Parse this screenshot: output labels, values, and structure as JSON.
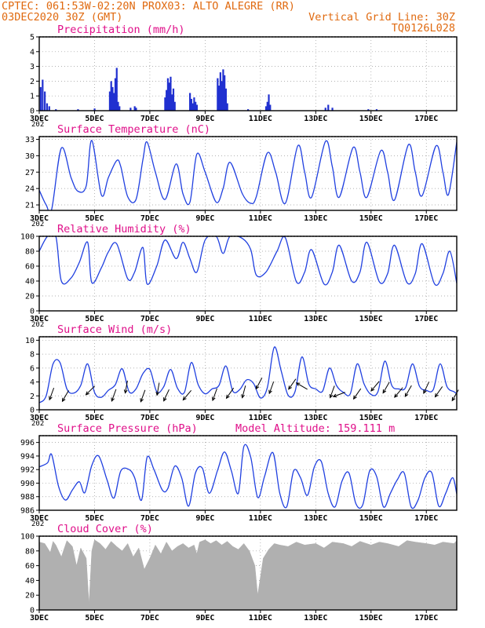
{
  "header": {
    "line1": "CPTEC:  061:53W-02:20N  PROX03: ALTO ALEGRE (RR)",
    "line2_left": "03DEC2020 30Z (GMT)",
    "line2_right": "Vertical Grid Line: 30Z",
    "line3_right": "TQ0126L028"
  },
  "x_axis": {
    "ticks": [
      "3DEC",
      "5DEC",
      "7DEC",
      "9DEC",
      "11DEC",
      "13DEC",
      "15DEC",
      "17DEC"
    ],
    "tick_days": [
      3,
      5,
      7,
      9,
      11,
      13,
      15,
      17
    ],
    "range_days": [
      3,
      18.1
    ],
    "cutoff_label": "202"
  },
  "colors": {
    "line": "#2040e0",
    "bars": "#2030d0",
    "cloud": "#b0b0b0",
    "arrows": "#000000",
    "header": "#e06a10",
    "titles": "#e0108a"
  },
  "chart_data": [
    {
      "type": "bar",
      "title": "Precipitation (mm/h)",
      "ylim": [
        0,
        5
      ],
      "yticks": [
        "0",
        "1",
        "2",
        "3",
        "4",
        "5"
      ],
      "grid": true,
      "x": [
        3.05,
        3.12,
        3.2,
        3.28,
        3.36,
        3.6,
        4.4,
        5.0,
        5.55,
        5.6,
        5.65,
        5.7,
        5.75,
        5.8,
        5.85,
        5.9,
        6.3,
        6.45,
        6.5,
        7.55,
        7.6,
        7.65,
        7.7,
        7.75,
        7.8,
        7.85,
        7.9,
        8.45,
        8.5,
        8.55,
        8.6,
        8.65,
        8.7,
        9.45,
        9.5,
        9.55,
        9.6,
        9.65,
        9.7,
        9.75,
        9.8,
        10.55,
        11.2,
        11.25,
        11.3,
        11.35,
        13.35,
        13.45,
        13.6,
        14.9,
        15.2
      ],
      "values": [
        1.6,
        2.1,
        1.3,
        0.5,
        0.3,
        0.1,
        0.1,
        0.15,
        1.3,
        2.0,
        1.6,
        1.2,
        2.2,
        2.9,
        0.6,
        0.3,
        0.2,
        0.3,
        0.2,
        0.9,
        1.4,
        2.2,
        1.9,
        2.3,
        1.1,
        1.5,
        0.6,
        1.2,
        0.8,
        0.5,
        0.9,
        0.6,
        0.4,
        2.2,
        1.7,
        2.6,
        2.0,
        2.8,
        2.4,
        1.5,
        0.5,
        0.1,
        0.3,
        0.6,
        1.1,
        0.4,
        0.2,
        0.4,
        0.2,
        0.1,
        0.1
      ]
    },
    {
      "type": "line",
      "title": "Surface Temperature (nC)",
      "ylim": [
        20,
        33.5
      ],
      "yticks": [
        "21",
        "24",
        "27",
        "30",
        "33"
      ],
      "grid": true,
      "x": [
        3.0,
        3.25,
        3.45,
        3.8,
        4.15,
        4.4,
        4.7,
        4.9,
        5.25,
        5.5,
        5.8,
        5.95,
        6.2,
        6.5,
        6.75,
        6.9,
        7.2,
        7.55,
        7.95,
        8.2,
        8.45,
        8.7,
        9.0,
        9.4,
        9.65,
        9.9,
        10.35,
        10.65,
        10.85,
        11.25,
        11.55,
        11.9,
        12.35,
        12.6,
        12.85,
        13.35,
        13.6,
        13.85,
        14.35,
        14.6,
        14.85,
        15.35,
        15.6,
        15.85,
        16.35,
        16.6,
        16.85,
        17.35,
        17.6,
        17.8,
        18.1
      ],
      "values": [
        23.7,
        21.0,
        20.2,
        31.4,
        26.0,
        23.5,
        24.5,
        32.8,
        22.8,
        26.0,
        29.1,
        28.0,
        22.5,
        22.0,
        29.3,
        32.5,
        27.0,
        22.0,
        28.5,
        23.0,
        21.5,
        30.3,
        27.0,
        21.5,
        24.0,
        28.8,
        23.0,
        21.3,
        22.5,
        30.5,
        27.0,
        21.3,
        31.8,
        27.0,
        22.4,
        32.6,
        28.0,
        22.4,
        31.5,
        27.0,
        22.4,
        30.9,
        27.0,
        21.9,
        32.0,
        27.0,
        22.7,
        31.8,
        27.0,
        22.9,
        32.5
      ]
    },
    {
      "type": "line",
      "title": "Relative Humidity (%)",
      "ylim": [
        0,
        100
      ],
      "yticks": [
        "0",
        "20",
        "40",
        "60",
        "80",
        "100"
      ],
      "grid": true,
      "x": [
        3.0,
        3.3,
        3.6,
        3.8,
        4.15,
        4.45,
        4.75,
        4.9,
        5.25,
        5.5,
        5.8,
        6.2,
        6.45,
        6.75,
        6.9,
        7.25,
        7.55,
        7.95,
        8.2,
        8.45,
        8.7,
        9.0,
        9.4,
        9.65,
        9.9,
        10.35,
        10.65,
        10.85,
        11.2,
        11.6,
        11.9,
        12.3,
        12.6,
        12.85,
        13.3,
        13.6,
        13.85,
        14.3,
        14.6,
        14.85,
        15.3,
        15.6,
        15.85,
        16.3,
        16.6,
        16.85,
        17.3,
        17.6,
        17.85,
        18.1
      ],
      "values": [
        80,
        100,
        100,
        40,
        44,
        65,
        92,
        38,
        58,
        79,
        90,
        43,
        52,
        85,
        36,
        60,
        95,
        70,
        92,
        70,
        52,
        95,
        100,
        77,
        100,
        97,
        82,
        48,
        52,
        80,
        98,
        39,
        52,
        82,
        36,
        52,
        88,
        40,
        52,
        92,
        39,
        50,
        88,
        38,
        50,
        90,
        36,
        50,
        80,
        37
      ]
    },
    {
      "type": "line",
      "title": "Surface Wind (m/s)",
      "ylim": [
        0,
        10.5
      ],
      "yticks": [
        "0",
        "2",
        "4",
        "6",
        "8",
        "10"
      ],
      "grid": true,
      "x": [
        3.0,
        3.25,
        3.5,
        3.75,
        4.0,
        4.25,
        4.5,
        4.75,
        5.0,
        5.25,
        5.5,
        5.75,
        6.0,
        6.25,
        6.5,
        6.75,
        7.0,
        7.25,
        7.5,
        7.75,
        8.0,
        8.25,
        8.5,
        8.75,
        9.0,
        9.25,
        9.5,
        9.75,
        10.0,
        10.25,
        10.5,
        10.75,
        11.0,
        11.25,
        11.5,
        11.75,
        12.0,
        12.25,
        12.5,
        12.75,
        13.0,
        13.25,
        13.5,
        13.75,
        14.0,
        14.25,
        14.5,
        14.75,
        15.0,
        15.25,
        15.5,
        15.75,
        16.0,
        16.25,
        16.5,
        16.75,
        17.0,
        17.25,
        17.5,
        17.75,
        18.0,
        18.1
      ],
      "values": [
        1.0,
        2.0,
        6.6,
        6.8,
        3.0,
        2.4,
        3.5,
        6.6,
        2.5,
        1.8,
        2.8,
        3.6,
        5.9,
        2.6,
        3.0,
        5.2,
        5.8,
        2.6,
        3.3,
        5.8,
        3.1,
        2.5,
        6.8,
        3.6,
        2.3,
        3.0,
        3.5,
        6.3,
        2.7,
        2.9,
        4.3,
        3.8,
        1.7,
        3.2,
        9.0,
        5.6,
        2.1,
        2.6,
        7.6,
        3.7,
        3.0,
        2.7,
        6.0,
        3.5,
        2.5,
        2.3,
        6.6,
        3.7,
        2.2,
        2.6,
        7.0,
        3.5,
        3.0,
        3.2,
        6.6,
        3.4,
        2.8,
        2.9,
        6.6,
        3.3,
        2.6,
        2.3
      ],
      "arrows": [
        {
          "x": 3.45,
          "speed": 2.3,
          "to_deg": 200
        },
        {
          "x": 3.95,
          "speed": 2.0,
          "to_deg": 210
        },
        {
          "x": 4.85,
          "speed": 2.8,
          "to_deg": 225
        },
        {
          "x": 5.7,
          "speed": 2.1,
          "to_deg": 200
        },
        {
          "x": 6.15,
          "speed": 3.3,
          "to_deg": 190
        },
        {
          "x": 6.75,
          "speed": 2.0,
          "to_deg": 200
        },
        {
          "x": 7.3,
          "speed": 3.0,
          "to_deg": 190
        },
        {
          "x": 7.6,
          "speed": 2.1,
          "to_deg": 205
        },
        {
          "x": 8.35,
          "speed": 2.1,
          "to_deg": 220
        },
        {
          "x": 9.35,
          "speed": 2.2,
          "to_deg": 200
        },
        {
          "x": 9.9,
          "speed": 2.4,
          "to_deg": 215
        },
        {
          "x": 10.4,
          "speed": 2.6,
          "to_deg": 195
        },
        {
          "x": 10.95,
          "speed": 3.8,
          "to_deg": 208
        },
        {
          "x": 11.4,
          "speed": 3.2,
          "to_deg": 200
        },
        {
          "x": 12.15,
          "speed": 3.7,
          "to_deg": 215
        },
        {
          "x": 12.5,
          "speed": 3.4,
          "to_deg": 300
        },
        {
          "x": 13.6,
          "speed": 2.6,
          "to_deg": 200
        },
        {
          "x": 13.85,
          "speed": 2.2,
          "to_deg": 250
        },
        {
          "x": 14.5,
          "speed": 2.3,
          "to_deg": 215
        },
        {
          "x": 15.15,
          "speed": 3.4,
          "to_deg": 220
        },
        {
          "x": 15.55,
          "speed": 3.2,
          "to_deg": 210
        },
        {
          "x": 16.0,
          "speed": 2.5,
          "to_deg": 220
        },
        {
          "x": 16.35,
          "speed": 2.7,
          "to_deg": 210
        },
        {
          "x": 17.0,
          "speed": 3.2,
          "to_deg": 205
        },
        {
          "x": 17.45,
          "speed": 2.6,
          "to_deg": 215
        },
        {
          "x": 18.05,
          "speed": 2.1,
          "to_deg": 210
        }
      ]
    },
    {
      "type": "line",
      "title": "Surface Pressure (hPa)",
      "annotation": "Model Altitude: 159.111 m",
      "ylim": [
        986,
        997
      ],
      "yticks": [
        "986",
        "988",
        "990",
        "992",
        "994",
        "996"
      ],
      "grid": true,
      "x": [
        3.0,
        3.3,
        3.45,
        3.7,
        3.95,
        4.2,
        4.45,
        4.65,
        4.9,
        5.15,
        5.45,
        5.7,
        5.95,
        6.25,
        6.45,
        6.7,
        6.9,
        7.15,
        7.45,
        7.65,
        7.9,
        8.15,
        8.4,
        8.65,
        8.9,
        9.15,
        9.45,
        9.7,
        9.95,
        10.2,
        10.4,
        10.65,
        10.9,
        11.15,
        11.45,
        11.7,
        11.95,
        12.2,
        12.45,
        12.7,
        12.95,
        13.2,
        13.45,
        13.7,
        13.95,
        14.2,
        14.45,
        14.7,
        14.95,
        15.2,
        15.45,
        15.7,
        15.95,
        16.2,
        16.45,
        16.7,
        16.95,
        17.2,
        17.45,
        17.7,
        17.95,
        18.1
      ],
      "values": [
        992.4,
        993.0,
        994.2,
        989.5,
        987.5,
        989.0,
        990.2,
        988.6,
        992.6,
        994.0,
        990.5,
        987.8,
        991.8,
        992.0,
        990.8,
        987.5,
        993.8,
        992.0,
        989.0,
        989.2,
        992.5,
        990.8,
        986.6,
        991.5,
        992.2,
        988.5,
        991.9,
        994.6,
        991.8,
        988.5,
        995.4,
        993.8,
        987.9,
        991.0,
        994.5,
        988.5,
        986.5,
        991.8,
        990.8,
        988.2,
        992.4,
        993.2,
        988.5,
        986.5,
        990.3,
        991.5,
        987.0,
        986.8,
        991.8,
        991.0,
        986.5,
        988.5,
        990.5,
        991.5,
        986.5,
        987.5,
        990.8,
        991.5,
        986.6,
        988.5,
        990.8,
        988.4
      ]
    },
    {
      "type": "area",
      "title": "Cloud Cover (%)",
      "ylim": [
        0,
        100
      ],
      "yticks": [
        "0",
        "20",
        "40",
        "60",
        "80",
        "100"
      ],
      "grid": true,
      "x": [
        3.0,
        3.2,
        3.4,
        3.5,
        3.6,
        3.8,
        4.0,
        4.2,
        4.35,
        4.5,
        4.7,
        4.8,
        4.9,
        5.0,
        5.2,
        5.4,
        5.6,
        5.8,
        6.0,
        6.2,
        6.4,
        6.6,
        6.8,
        7.0,
        7.2,
        7.4,
        7.6,
        7.8,
        8.0,
        8.2,
        8.4,
        8.6,
        8.7,
        8.8,
        9.0,
        9.2,
        9.4,
        9.6,
        9.8,
        10.0,
        10.2,
        10.4,
        10.6,
        10.8,
        10.9,
        11.0,
        11.1,
        11.3,
        11.5,
        11.7,
        12.0,
        12.3,
        12.6,
        13.0,
        13.3,
        13.6,
        14.0,
        14.3,
        14.6,
        15.0,
        15.3,
        15.6,
        16.0,
        16.3,
        16.6,
        17.0,
        17.3,
        17.6,
        18.0,
        18.1
      ],
      "values": [
        92,
        90,
        78,
        93,
        88,
        72,
        94,
        86,
        60,
        84,
        70,
        8,
        80,
        95,
        90,
        82,
        93,
        86,
        80,
        90,
        72,
        84,
        55,
        70,
        88,
        76,
        92,
        80,
        86,
        90,
        84,
        88,
        76,
        92,
        95,
        90,
        94,
        88,
        93,
        86,
        82,
        90,
        80,
        60,
        20,
        45,
        70,
        82,
        90,
        88,
        86,
        92,
        88,
        90,
        84,
        92,
        90,
        86,
        93,
        88,
        92,
        90,
        86,
        94,
        92,
        90,
        88,
        92,
        90,
        94
      ]
    }
  ]
}
